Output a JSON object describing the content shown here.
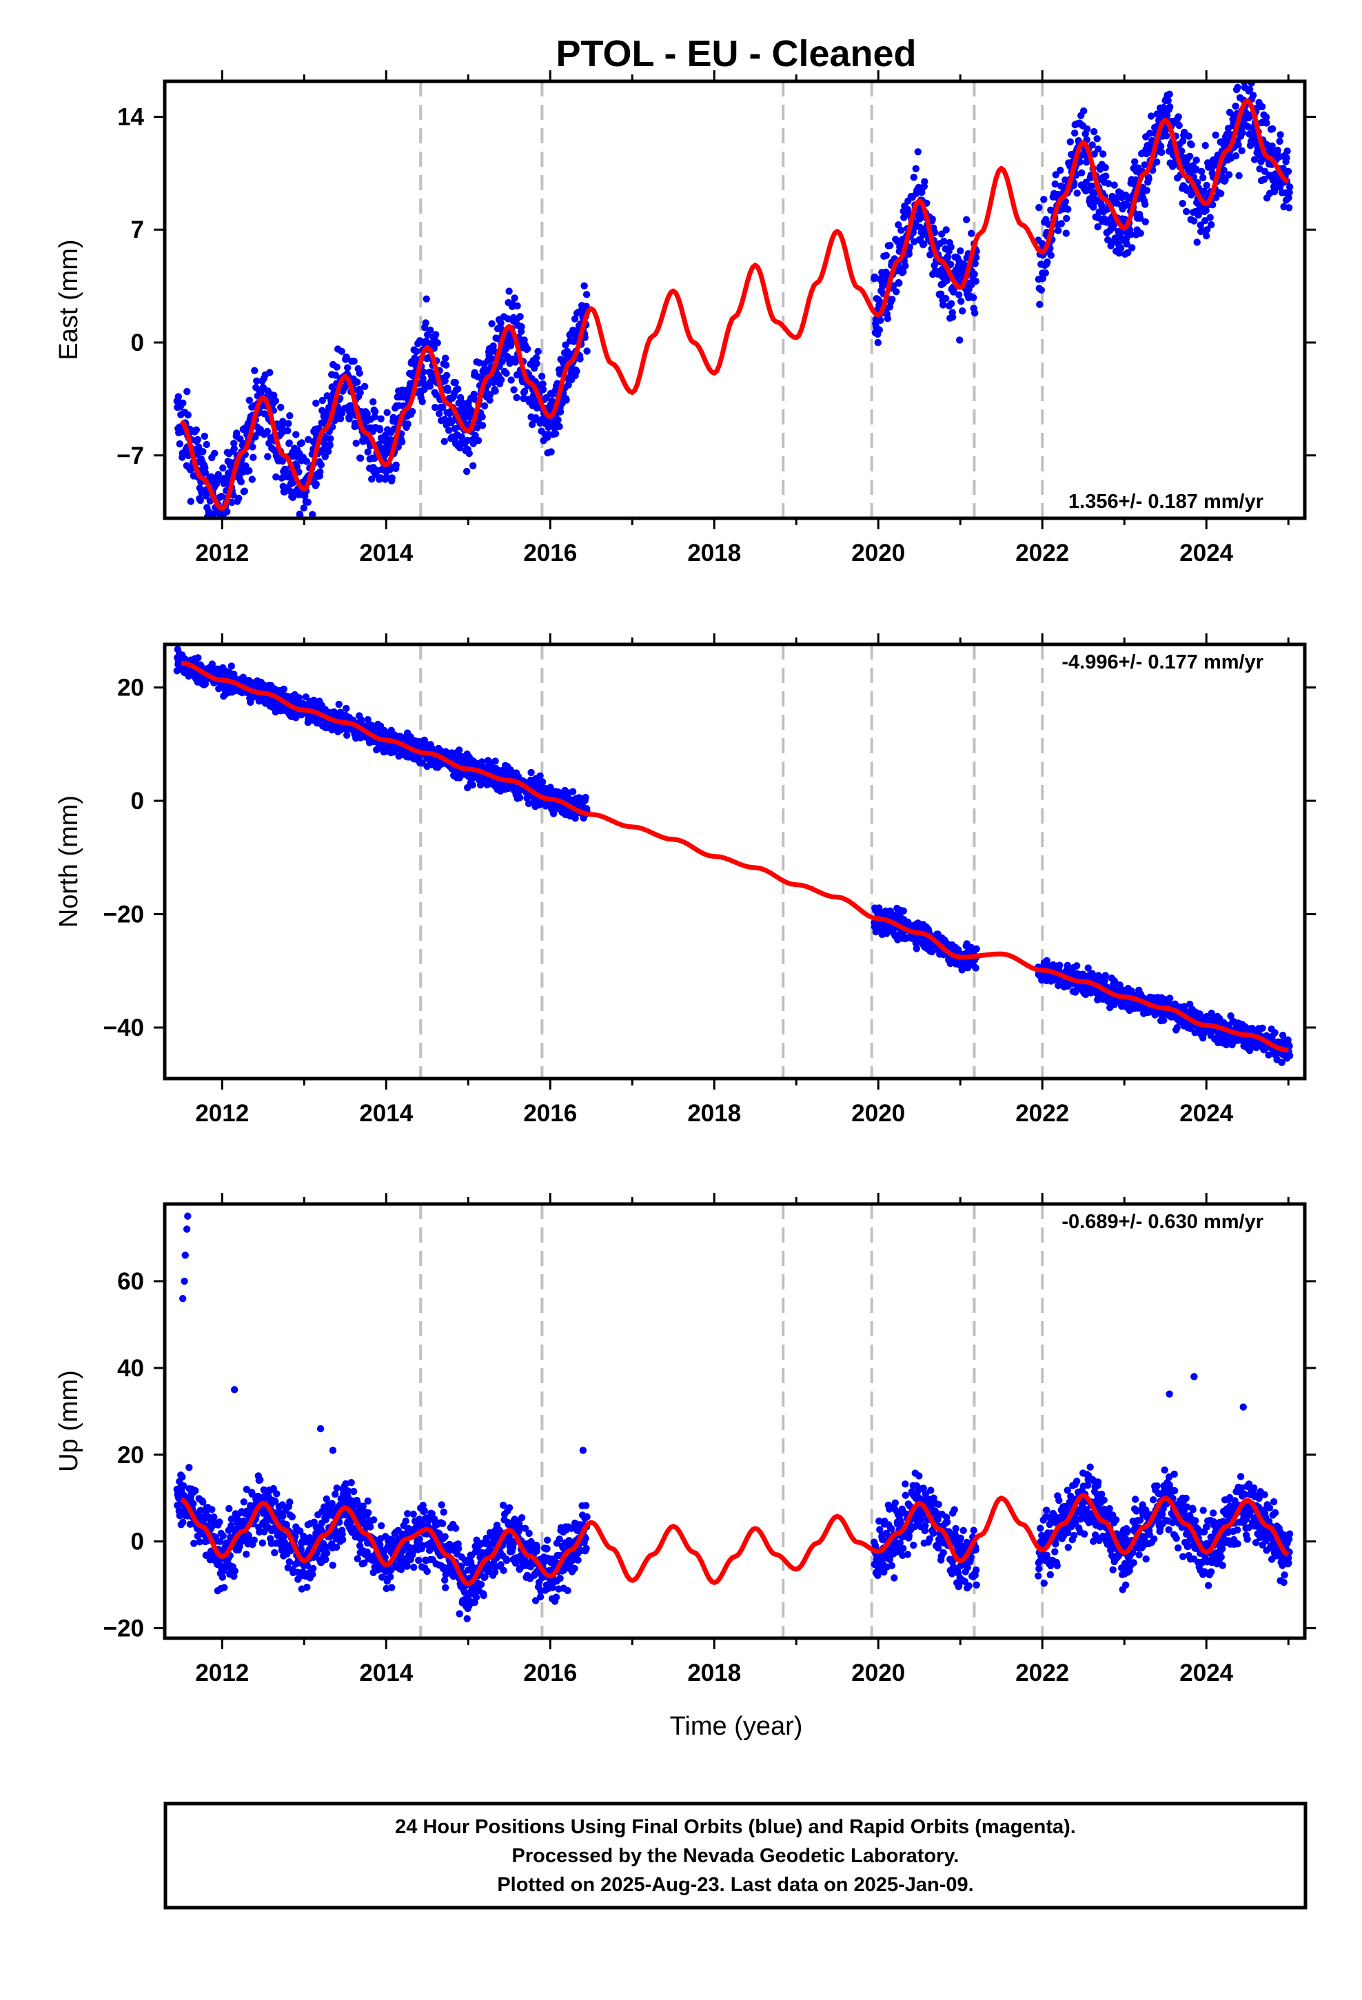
{
  "title": "PTOL  - EU - Cleaned",
  "xlabel": "Time (year)",
  "footer": {
    "line1": "24 Hour Positions Using Final Orbits (blue) and Rapid Orbits (magenta).",
    "line2": "Processed by the Nevada Geodetic Laboratory.",
    "line3": "Plotted on 2025-Aug-23. Last data on 2025-Jan-09."
  },
  "colors": {
    "data": "#0000ff",
    "model": "#ff0000",
    "steps": "#c0c0c0",
    "frame": "#000000"
  },
  "chart_data": [
    {
      "type": "scatter",
      "panel": "east",
      "ylabel": "East (mm)",
      "xlim": [
        2011.3,
        2025.2
      ],
      "ylim": [
        -10.9,
        16.2
      ],
      "xticks": [
        2012,
        2014,
        2016,
        2018,
        2020,
        2022,
        2024
      ],
      "yticks": [
        -7,
        0,
        7,
        14
      ],
      "step_epochs": [
        2014.42,
        2015.9,
        2018.84,
        2019.92,
        2021.17,
        2022.0
      ],
      "rate_label": "1.356+/- 0.187 mm/yr",
      "data_segments": [
        [
          2011.45,
          2016.45
        ],
        [
          2019.95,
          2021.2
        ],
        [
          2021.95,
          2025.02
        ]
      ],
      "series": [
        {
          "name": "Final Orbits (blue)",
          "x": [
            2011.5,
            2011.75,
            2012.0,
            2012.25,
            2012.5,
            2012.75,
            2013.0,
            2013.25,
            2013.5,
            2013.75,
            2014.0,
            2014.25,
            2014.5,
            2014.75,
            2015.0,
            2015.25,
            2015.5,
            2015.75,
            2016.0,
            2016.25,
            2016.45,
            2020.0,
            2020.25,
            2020.5,
            2020.75,
            2021.0,
            2021.15,
            2022.0,
            2022.25,
            2022.5,
            2022.75,
            2023.0,
            2023.25,
            2023.5,
            2023.75,
            2024.0,
            2024.25,
            2024.5,
            2024.75,
            2025.0
          ],
          "y": [
            -4.9,
            -8.4,
            -10.3,
            -6.8,
            -3.4,
            -7.0,
            -9.1,
            -5.4,
            -2.1,
            -5.6,
            -7.6,
            -4.1,
            -0.3,
            -3.8,
            -5.5,
            -2.1,
            1.0,
            -2.5,
            -4.6,
            -1.2,
            2.0,
            2.0,
            5.4,
            8.8,
            5.1,
            3.4,
            4.5,
            5.6,
            9.0,
            12.4,
            8.9,
            7.1,
            10.5,
            13.8,
            10.3,
            8.6,
            11.9,
            15.0,
            11.5,
            10.0
          ]
        },
        {
          "name": "model",
          "x": [
            2011.5,
            2011.75,
            2012.0,
            2012.25,
            2012.5,
            2012.75,
            2013.0,
            2013.25,
            2013.5,
            2013.75,
            2014.0,
            2014.25,
            2014.5,
            2014.75,
            2015.0,
            2015.25,
            2015.5,
            2015.75,
            2016.0,
            2016.25,
            2016.5,
            2016.75,
            2017.0,
            2017.25,
            2017.5,
            2017.75,
            2018.0,
            2018.25,
            2018.5,
            2018.75,
            2019.0,
            2019.25,
            2019.5,
            2019.75,
            2020.0,
            2020.25,
            2020.5,
            2020.75,
            2021.0,
            2021.25,
            2021.5,
            2021.75,
            2022.0,
            2022.25,
            2022.5,
            2022.75,
            2023.0,
            2023.25,
            2023.5,
            2023.75,
            2024.0,
            2024.25,
            2024.5,
            2024.75,
            2025.0
          ],
          "y": [
            -4.9,
            -8.4,
            -10.3,
            -6.8,
            -3.4,
            -7.0,
            -9.1,
            -5.4,
            -2.1,
            -5.6,
            -7.6,
            -4.1,
            -0.3,
            -3.8,
            -5.5,
            -2.1,
            1.0,
            -2.5,
            -4.6,
            -1.2,
            2.1,
            -1.3,
            -3.1,
            0.4,
            3.2,
            0.0,
            -1.9,
            1.6,
            4.8,
            1.3,
            0.3,
            3.7,
            6.9,
            3.4,
            1.7,
            5.1,
            8.8,
            5.1,
            3.4,
            6.8,
            10.8,
            7.3,
            5.6,
            9.0,
            12.4,
            8.9,
            7.1,
            10.5,
            13.8,
            10.3,
            8.6,
            11.9,
            15.0,
            11.5,
            10.0
          ]
        }
      ]
    },
    {
      "type": "scatter",
      "panel": "north",
      "ylabel": "North (mm)",
      "xlim": [
        2011.3,
        2025.2
      ],
      "ylim": [
        -49.0,
        27.6
      ],
      "xticks": [
        2012,
        2014,
        2016,
        2018,
        2020,
        2022,
        2024
      ],
      "yticks": [
        -40,
        -20,
        0,
        20
      ],
      "step_epochs": [
        2014.42,
        2015.9,
        2018.84,
        2019.92,
        2021.17,
        2022.0
      ],
      "rate_label": "-4.996+/- 0.177 mm/yr",
      "data_segments": [
        [
          2011.45,
          2016.45
        ],
        [
          2019.95,
          2021.2
        ],
        [
          2021.95,
          2025.02
        ]
      ],
      "series": [
        {
          "name": "Final Orbits (blue)",
          "x": [
            2011.5,
            2012.0,
            2012.5,
            2013.0,
            2013.5,
            2014.0,
            2014.5,
            2015.0,
            2015.5,
            2016.0,
            2016.4,
            2020.0,
            2020.5,
            2021.0,
            2022.0,
            2022.5,
            2023.0,
            2023.5,
            2024.0,
            2024.5,
            2025.0
          ],
          "y": [
            24.3,
            21.3,
            19.0,
            16.0,
            13.8,
            10.7,
            8.4,
            5.6,
            3.6,
            0.3,
            -1.2,
            -20.8,
            -23.3,
            -27.6,
            -29.9,
            -31.9,
            -34.6,
            -36.6,
            -39.6,
            -41.3,
            -44.0
          ]
        },
        {
          "name": "model",
          "x": [
            2011.5,
            2012.0,
            2012.5,
            2013.0,
            2013.5,
            2014.0,
            2014.5,
            2015.0,
            2015.5,
            2016.0,
            2016.5,
            2017.0,
            2017.5,
            2018.0,
            2018.5,
            2019.0,
            2019.5,
            2020.0,
            2020.5,
            2021.0,
            2021.5,
            2022.0,
            2022.5,
            2023.0,
            2023.5,
            2024.0,
            2024.5,
            2025.0
          ],
          "y": [
            24.3,
            21.3,
            19.0,
            16.0,
            13.8,
            10.7,
            8.4,
            5.6,
            3.6,
            0.3,
            -2.4,
            -4.6,
            -6.8,
            -9.8,
            -11.8,
            -14.8,
            -17.0,
            -20.8,
            -23.3,
            -27.6,
            -27.0,
            -29.9,
            -31.9,
            -34.6,
            -36.6,
            -39.6,
            -41.3,
            -44.0
          ]
        }
      ]
    },
    {
      "type": "scatter",
      "panel": "up",
      "ylabel": "Up (mm)",
      "xlim": [
        2011.3,
        2025.2
      ],
      "ylim": [
        -22.3,
        77.8
      ],
      "xticks": [
        2012,
        2014,
        2016,
        2018,
        2020,
        2022,
        2024
      ],
      "yticks": [
        -20,
        0,
        20,
        40,
        60
      ],
      "step_epochs": [
        2014.42,
        2015.9,
        2018.84,
        2019.92,
        2021.17,
        2022.0
      ],
      "rate_label": "-0.689+/- 0.630 mm/yr",
      "data_segments": [
        [
          2011.45,
          2016.45
        ],
        [
          2019.95,
          2021.2
        ],
        [
          2021.95,
          2025.02
        ]
      ],
      "outliers": {
        "x": [
          2011.52,
          2011.54,
          2011.55,
          2011.57,
          2011.58,
          2012.15,
          2013.2,
          2013.35,
          2023.85,
          2023.55,
          2024.45,
          2016.4
        ],
        "y": [
          56.0,
          60.0,
          66.0,
          72.0,
          75.0,
          35.0,
          26.0,
          21.0,
          38.0,
          34.0,
          31.0,
          21.0
        ]
      },
      "series": [
        {
          "name": "Final Orbits (blue)",
          "x": [
            2011.5,
            2011.75,
            2012.0,
            2012.25,
            2012.5,
            2012.75,
            2013.0,
            2013.25,
            2013.5,
            2013.75,
            2014.0,
            2014.25,
            2014.5,
            2014.75,
            2015.0,
            2015.25,
            2015.5,
            2015.75,
            2016.0,
            2016.25,
            2016.4,
            2020.0,
            2020.25,
            2020.5,
            2020.75,
            2021.0,
            2021.15,
            2022.0,
            2022.25,
            2022.5,
            2022.75,
            2023.0,
            2023.25,
            2023.5,
            2023.75,
            2024.0,
            2024.25,
            2024.5,
            2024.75,
            2025.0
          ],
          "y": [
            9.6,
            3.5,
            -3.5,
            2.3,
            8.8,
            2.8,
            -4.5,
            1.5,
            7.8,
            1.8,
            -5.4,
            0.6,
            2.8,
            -3.2,
            -9.8,
            -3.8,
            2.6,
            -3.4,
            -8.0,
            -2.0,
            2.0,
            -2.3,
            2.0,
            8.8,
            2.8,
            -4.5,
            -3.5,
            -2.0,
            4.0,
            10.6,
            4.6,
            -2.6,
            3.4,
            10.0,
            4.0,
            -2.5,
            3.5,
            9.5,
            3.5,
            -3.0
          ]
        },
        {
          "name": "model",
          "x": [
            2011.5,
            2011.75,
            2012.0,
            2012.25,
            2012.5,
            2012.75,
            2013.0,
            2013.25,
            2013.5,
            2013.75,
            2014.0,
            2014.25,
            2014.5,
            2014.75,
            2015.0,
            2015.25,
            2015.5,
            2015.75,
            2016.0,
            2016.25,
            2016.5,
            2016.75,
            2017.0,
            2017.25,
            2017.5,
            2017.75,
            2018.0,
            2018.25,
            2018.5,
            2018.75,
            2019.0,
            2019.25,
            2019.5,
            2019.75,
            2020.0,
            2020.25,
            2020.5,
            2020.75,
            2021.0,
            2021.25,
            2021.5,
            2021.75,
            2022.0,
            2022.25,
            2022.5,
            2022.75,
            2023.0,
            2023.25,
            2023.5,
            2023.75,
            2024.0,
            2024.25,
            2024.5,
            2024.75,
            2025.0
          ],
          "y": [
            9.6,
            3.5,
            -3.5,
            2.3,
            8.8,
            2.8,
            -4.5,
            1.5,
            7.8,
            1.8,
            -5.4,
            0.6,
            2.8,
            -3.2,
            -9.8,
            -3.8,
            2.6,
            -3.4,
            -8.0,
            -2.0,
            4.4,
            -1.6,
            -9.0,
            -3.0,
            3.5,
            -2.5,
            -9.5,
            -3.5,
            3.0,
            -3.0,
            -6.4,
            -0.4,
            5.8,
            -0.2,
            -2.3,
            2.0,
            8.8,
            2.8,
            -4.5,
            1.5,
            10.0,
            4.0,
            -2.0,
            4.0,
            10.6,
            4.6,
            -2.6,
            3.4,
            10.0,
            4.0,
            -2.5,
            3.5,
            9.5,
            3.5,
            -3.0
          ]
        }
      ]
    }
  ]
}
